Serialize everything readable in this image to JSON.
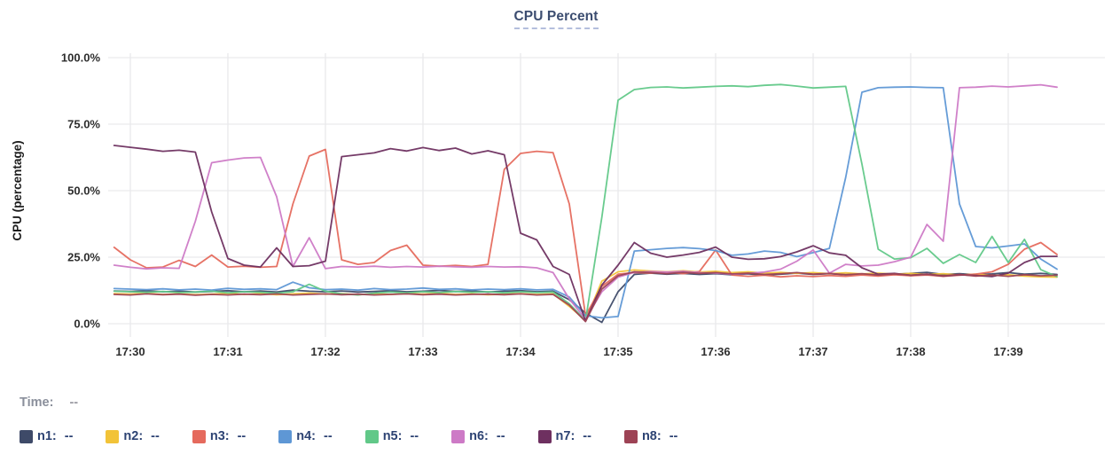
{
  "header": {
    "title": "CPU Percent"
  },
  "status_bar": {
    "time_label": "Time:",
    "time_value": "--"
  },
  "colors": {
    "background": "#ffffff",
    "grid": "#e9e9ec",
    "axis_text": "#2e2e2e",
    "y_axis_title_text": "#1c1c1c",
    "title_text": "#3c4d70",
    "title_underline": "#b4bfdd",
    "legend_text": "#2d4373",
    "time_text": "#8a8f9b"
  },
  "chart_data": {
    "type": "line",
    "title": "CPU Percent",
    "xlabel": "",
    "ylabel": "CPU (percentage)",
    "ylim": [
      0,
      100
    ],
    "grid": true,
    "legend_position": "bottom",
    "y_tick_percents": [
      0,
      25,
      50,
      75,
      100
    ],
    "y_tick_labels": [
      "0.0%",
      "25.0%",
      "50.0%",
      "75.0%",
      "100.0%"
    ],
    "x_tick_labels": [
      "17:30",
      "17:31",
      "17:32",
      "17:33",
      "17:34",
      "17:35",
      "17:36",
      "17:37",
      "17:38",
      "17:39"
    ],
    "x_start_time": "17:29:50",
    "x_start_offset_seconds": -10,
    "x_sample_interval_seconds": 10,
    "series": [
      {
        "name": "n1",
        "color": "#3e4a68",
        "legend_value": "--",
        "values": [
          12.3,
          12.1,
          12.4,
          12.0,
          12.2,
          11.9,
          12.1,
          12.4,
          12.0,
          12.3,
          11.9,
          12.6,
          12.2,
          12.0,
          12.3,
          11.9,
          12.1,
          12.4,
          12.0,
          12.2,
          12.5,
          12.1,
          12.3,
          11.9,
          12.2,
          12.4,
          12.0,
          12.2,
          9.0,
          4.0,
          0.5,
          12.0,
          18.5,
          19.0,
          18.6,
          18.9,
          18.5,
          18.8,
          18.4,
          18.7,
          18.3,
          18.6,
          19.0,
          18.5,
          18.8,
          18.4,
          18.7,
          18.3,
          18.6,
          18.9,
          19.3,
          18.5,
          18.8,
          18.4,
          18.7,
          19.2,
          18.6,
          18.9,
          18.5
        ]
      },
      {
        "name": "n2",
        "color": "#f2c338",
        "legend_value": "--",
        "values": [
          11.3,
          11.1,
          11.4,
          11.0,
          11.2,
          10.9,
          11.1,
          11.4,
          11.0,
          11.3,
          10.9,
          11.2,
          11.5,
          11.1,
          11.3,
          10.9,
          11.2,
          11.0,
          11.3,
          11.1,
          11.4,
          11.0,
          11.2,
          10.9,
          11.1,
          11.3,
          11.0,
          11.2,
          6.5,
          1.2,
          16.0,
          19.5,
          20.2,
          19.8,
          19.5,
          19.9,
          19.4,
          19.7,
          19.2,
          19.5,
          19.0,
          19.3,
          18.9,
          19.2,
          18.8,
          19.1,
          18.7,
          19.0,
          18.6,
          18.9,
          18.5,
          18.8,
          18.3,
          18.6,
          18.1,
          18.4,
          17.9,
          17.6,
          17.5
        ]
      },
      {
        "name": "n3",
        "color": "#e56a5d",
        "legend_value": "--",
        "values": [
          28.7,
          24.0,
          21.0,
          21.3,
          23.8,
          21.5,
          25.8,
          21.3,
          21.6,
          21.2,
          21.5,
          45.0,
          63.0,
          65.5,
          24.0,
          22.3,
          23.0,
          27.5,
          29.5,
          22.0,
          21.6,
          21.9,
          21.5,
          22.3,
          58.0,
          64.0,
          64.8,
          64.3,
          45.0,
          3.0,
          14.0,
          18.6,
          19.2,
          19.0,
          19.4,
          18.8,
          19.6,
          27.7,
          18.3,
          17.8,
          18.2,
          17.6,
          18.0,
          17.7,
          18.1,
          17.8,
          18.3,
          17.9,
          18.4,
          18.0,
          18.3,
          17.8,
          18.2,
          18.6,
          19.5,
          22.3,
          28.0,
          30.5,
          26.0
        ]
      },
      {
        "name": "n4",
        "color": "#5e97d5",
        "legend_value": "--",
        "values": [
          13.2,
          13.0,
          12.8,
          13.1,
          12.7,
          13.0,
          12.6,
          13.3,
          12.9,
          13.1,
          12.8,
          15.6,
          13.5,
          12.8,
          13.0,
          12.6,
          13.2,
          12.8,
          13.0,
          13.4,
          12.9,
          13.1,
          12.7,
          13.0,
          12.8,
          13.1,
          12.7,
          12.9,
          10.0,
          3.0,
          2.2,
          2.7,
          27.3,
          27.8,
          28.3,
          28.6,
          28.2,
          27.5,
          25.7,
          26.2,
          27.3,
          26.8,
          25.2,
          26.7,
          28.3,
          55.0,
          87.0,
          88.7,
          88.9,
          89.0,
          88.8,
          88.7,
          45.0,
          29.0,
          28.5,
          29.2,
          30.0,
          24.3,
          20.5
        ]
      },
      {
        "name": "n5",
        "color": "#61c888",
        "legend_value": "--",
        "values": [
          12.2,
          12.0,
          11.8,
          12.1,
          11.7,
          11.9,
          12.2,
          11.6,
          12.0,
          11.8,
          11.5,
          12.0,
          14.8,
          12.2,
          11.2,
          10.8,
          11.5,
          11.9,
          11.6,
          12.0,
          11.7,
          12.1,
          11.8,
          12.0,
          11.6,
          12.0,
          11.7,
          11.9,
          7.5,
          1.2,
          40.0,
          84.0,
          88.0,
          88.8,
          89.0,
          88.6,
          88.9,
          89.2,
          89.4,
          89.1,
          89.6,
          89.9,
          89.3,
          88.6,
          88.9,
          89.2,
          60.0,
          28.0,
          24.3,
          24.8,
          28.3,
          22.7,
          26.0,
          23.0,
          32.8,
          23.0,
          31.7,
          20.3,
          17.7
        ]
      },
      {
        "name": "n6",
        "color": "#cd7ac6",
        "legend_value": "--",
        "values": [
          22.0,
          21.2,
          20.6,
          21.0,
          20.8,
          38.5,
          60.5,
          61.5,
          62.3,
          62.5,
          47.7,
          21.5,
          32.3,
          20.7,
          21.5,
          21.3,
          21.6,
          21.2,
          21.5,
          21.3,
          21.6,
          21.4,
          21.2,
          21.5,
          21.3,
          21.4,
          21.0,
          19.2,
          9.3,
          1.7,
          12.0,
          17.5,
          19.3,
          19.6,
          19.4,
          19.7,
          19.2,
          19.0,
          18.6,
          18.9,
          19.4,
          20.5,
          23.5,
          27.7,
          19.0,
          22.3,
          21.7,
          22.0,
          23.3,
          25.0,
          37.3,
          31.0,
          88.7,
          88.9,
          89.3,
          89.0,
          89.4,
          89.8,
          88.9
        ]
      },
      {
        "name": "n7",
        "color": "#6e3060",
        "legend_value": "--",
        "values": [
          67.0,
          66.3,
          65.6,
          64.8,
          65.2,
          64.5,
          42.0,
          24.5,
          22.0,
          21.3,
          28.5,
          21.5,
          21.8,
          23.5,
          62.8,
          63.5,
          64.2,
          65.8,
          64.9,
          66.2,
          65.1,
          66.0,
          63.8,
          65.0,
          63.5,
          34.0,
          31.5,
          21.5,
          18.5,
          1.0,
          14.5,
          22.0,
          30.5,
          26.5,
          25.0,
          25.8,
          26.8,
          28.8,
          25.0,
          24.2,
          24.4,
          25.2,
          27.0,
          29.3,
          26.6,
          25.7,
          21.0,
          18.6,
          18.9,
          18.2,
          18.6,
          17.9,
          18.4,
          18.1,
          17.7,
          19.0,
          23.0,
          25.3,
          25.3
        ]
      },
      {
        "name": "n8",
        "color": "#9d4355",
        "legend_value": "--",
        "values": [
          11.0,
          10.8,
          11.2,
          10.9,
          11.1,
          10.7,
          11.0,
          10.8,
          11.1,
          10.9,
          11.2,
          10.8,
          11.0,
          11.2,
          10.9,
          11.1,
          10.8,
          11.0,
          11.2,
          10.9,
          11.1,
          10.8,
          11.0,
          11.1,
          10.9,
          11.2,
          10.8,
          11.0,
          7.0,
          0.8,
          13.0,
          18.0,
          19.5,
          19.2,
          18.8,
          19.3,
          18.9,
          19.2,
          18.7,
          19.0,
          18.5,
          18.8,
          19.2,
          18.6,
          18.9,
          18.4,
          18.8,
          18.3,
          18.7,
          18.2,
          18.6,
          18.0,
          18.5,
          17.9,
          18.3,
          17.8,
          18.4,
          18.0,
          18.2
        ]
      }
    ]
  }
}
